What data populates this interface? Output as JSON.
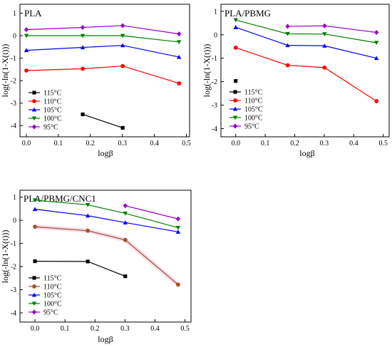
{
  "figure": {
    "panels": [
      {
        "title": "PLA",
        "xlabel": "logβ",
        "ylabel": "log(-ln(1-X(t)))",
        "xlim": [
          -0.02,
          0.51
        ],
        "ylim": [
          -4.5,
          1.4
        ],
        "xticks": [
          0.0,
          0.1,
          0.2,
          0.3,
          0.4,
          0.5
        ],
        "xtick_labels": [
          "0.0",
          "0.1",
          "0.2",
          "0.3",
          "0.4",
          "0.5"
        ],
        "yticks": [
          -4,
          -3,
          -2,
          -1,
          0,
          1
        ],
        "ytick_labels": [
          "-4",
          "-3",
          "-2",
          "-1",
          "0",
          "1"
        ],
        "legend": [
          "115°C",
          "110°C",
          "105°C",
          "100°C",
          "95°C"
        ]
      },
      {
        "title": "PLA/PBMG",
        "xlabel": "logβ",
        "ylabel": "log(-ln(1-X(t)))",
        "xlim": [
          -0.05,
          0.52
        ],
        "ylim": [
          -4.35,
          1.3
        ],
        "xticks": [
          0.0,
          0.1,
          0.2,
          0.3,
          0.4,
          0.5
        ],
        "xtick_labels": [
          "0.0",
          "0.1",
          "0.2",
          "0.3",
          "0.4",
          "0.5"
        ],
        "yticks": [
          -4,
          -3,
          -2,
          -1,
          0,
          1
        ],
        "ytick_labels": [
          "-4",
          "-3",
          "-2",
          "-1",
          "0",
          "1"
        ],
        "legend": [
          "115°C",
          "110°C",
          "105°C",
          "100°C",
          "95°C"
        ]
      },
      {
        "title": "PLA/PBMG/CNC1",
        "xlabel": "logβ",
        "ylabel": "log(-ln(1-X(t)))",
        "xlim": [
          -0.05,
          0.52
        ],
        "ylim": [
          -4.4,
          1.3
        ],
        "xticks": [
          0.0,
          0.1,
          0.2,
          0.3,
          0.4,
          0.5
        ],
        "xtick_labels": [
          "0.0",
          "0.1",
          "0.2",
          "0.3",
          "0.4",
          "0.5"
        ],
        "yticks": [
          -4,
          -3,
          -2,
          -1,
          0,
          1
        ],
        "ytick_labels": [
          "-4",
          "-3",
          "-2",
          "-1",
          "0",
          "1"
        ],
        "legend": [
          "115°C",
          "110°C",
          "105°C",
          "100°C",
          "95°C"
        ]
      }
    ]
  },
  "series_style": [
    {
      "color": "#000000",
      "marker": "square"
    },
    {
      "color": "#ff0000",
      "marker": "circle"
    },
    {
      "color": "#0000ff",
      "marker": "triangle-up"
    },
    {
      "color": "#008000",
      "marker": "triangle-down"
    },
    {
      "color": "#9900cc",
      "marker": "diamond"
    }
  ],
  "panel3_110_color": "#a0522d",
  "chart_data": [
    {
      "type": "line",
      "title": "PLA",
      "xlabel": "logβ",
      "ylabel": "log(-ln(1-X(t)))",
      "xlim": [
        -0.02,
        0.51
      ],
      "ylim": [
        -4.5,
        1.4
      ],
      "grid": false,
      "legend_position": "bottom-left",
      "series": [
        {
          "name": "115°C",
          "x": [
            0.176,
            0.301
          ],
          "y": [
            -3.5,
            -4.1
          ]
        },
        {
          "name": "110°C",
          "x": [
            0.0,
            0.176,
            0.301,
            0.477
          ],
          "y": [
            -1.55,
            -1.47,
            -1.35,
            -2.12
          ]
        },
        {
          "name": "105°C",
          "x": [
            0.0,
            0.176,
            0.301,
            0.477
          ],
          "y": [
            -0.65,
            -0.52,
            -0.43,
            -0.95
          ]
        },
        {
          "name": "100°C",
          "x": [
            0.0,
            0.176,
            0.301,
            0.477
          ],
          "y": [
            0.0,
            0.0,
            0.0,
            -0.28
          ]
        },
        {
          "name": "95°C",
          "x": [
            0.0,
            0.176,
            0.301,
            0.477
          ],
          "y": [
            0.27,
            0.37,
            0.45,
            0.08
          ]
        }
      ]
    },
    {
      "type": "line",
      "title": "PLA/PBMG",
      "xlabel": "logβ",
      "ylabel": "log(-ln(1-X(t)))",
      "xlim": [
        -0.05,
        0.52
      ],
      "ylim": [
        -4.35,
        1.3
      ],
      "grid": false,
      "legend_position": "bottom-left",
      "series": [
        {
          "name": "115°C",
          "x": [
            0.0
          ],
          "y": [
            -1.97
          ]
        },
        {
          "name": "110°C",
          "x": [
            0.0,
            0.176,
            0.301,
            0.477
          ],
          "y": [
            -0.55,
            -1.3,
            -1.4,
            -2.83
          ]
        },
        {
          "name": "105°C",
          "x": [
            0.0,
            0.176,
            0.301,
            0.477
          ],
          "y": [
            0.32,
            -0.45,
            -0.47,
            -1.0
          ]
        },
        {
          "name": "100°C",
          "x": [
            0.0,
            0.176,
            0.301,
            0.477
          ],
          "y": [
            0.63,
            0.04,
            0.03,
            -0.34
          ]
        },
        {
          "name": "95°C",
          "x": [
            0.176,
            0.301,
            0.477
          ],
          "y": [
            0.36,
            0.38,
            0.1
          ]
        }
      ]
    },
    {
      "type": "line",
      "title": "PLA/PBMG/CNC1",
      "xlabel": "logβ",
      "ylabel": "log(-ln(1-X(t)))",
      "xlim": [
        -0.05,
        0.52
      ],
      "ylim": [
        -4.4,
        1.3
      ],
      "grid": false,
      "legend_position": "bottom-left",
      "series": [
        {
          "name": "115°C",
          "x": [
            0.0,
            0.176,
            0.301
          ],
          "y": [
            -1.77,
            -1.78,
            -2.42
          ]
        },
        {
          "name": "110°C",
          "x": [
            0.0,
            0.176,
            0.301,
            0.477
          ],
          "y": [
            -0.28,
            -0.45,
            -0.85,
            -2.78
          ]
        },
        {
          "name": "105°C",
          "x": [
            0.0,
            0.176,
            0.301,
            0.477
          ],
          "y": [
            0.48,
            0.2,
            -0.1,
            -0.5
          ]
        },
        {
          "name": "100°C",
          "x": [
            0.0,
            0.176,
            0.301,
            0.477
          ],
          "y": [
            0.87,
            0.67,
            0.3,
            -0.32
          ]
        },
        {
          "name": "95°C",
          "x": [
            0.301,
            0.477
          ],
          "y": [
            0.63,
            0.06
          ]
        }
      ]
    }
  ]
}
